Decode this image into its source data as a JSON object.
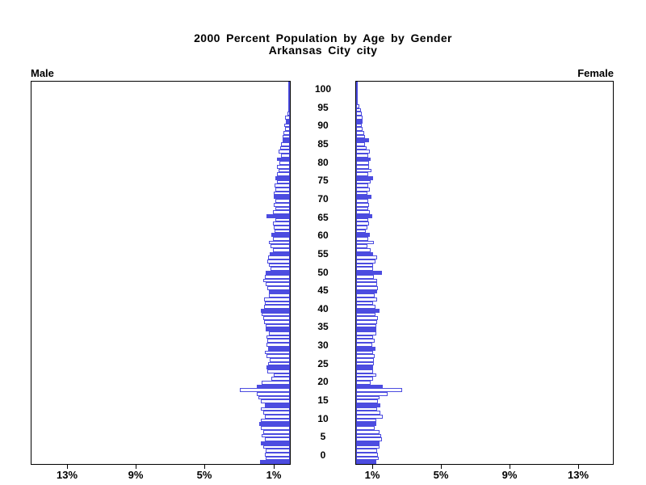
{
  "title": {
    "line1": "2000 Percent Population by Age by Gender",
    "line2": "Arkansas City city"
  },
  "panel_labels": {
    "left": "Male",
    "right": "Female"
  },
  "axis": {
    "x_tick_values": [
      1,
      5,
      9,
      13
    ],
    "x_tick_labels": [
      "1%",
      "5%",
      "9%",
      "13%"
    ],
    "x_max_percent": 15,
    "age_tick_values": [
      0,
      5,
      10,
      15,
      20,
      25,
      30,
      35,
      40,
      45,
      50,
      55,
      60,
      65,
      70,
      75,
      80,
      85,
      90,
      95,
      100
    ],
    "age_tick_labels": [
      "0",
      "5",
      "10",
      "15",
      "20",
      "25",
      "30",
      "35",
      "40",
      "45",
      "50",
      "55",
      "60",
      "65",
      "70",
      "75",
      "80",
      "85",
      "90",
      "95",
      "100"
    ]
  },
  "colors": {
    "bar_blue": "#4C4CE0",
    "axis_black": "#000000",
    "background": "#FFFFFF"
  },
  "chart_data": {
    "type": "bar",
    "subtype": "population-pyramid",
    "title": "2000 Percent Population by Age by Gender",
    "subtitle": "Arkansas City city",
    "x_unit": "percent of population",
    "xlim_each_side": [
      0,
      15
    ],
    "x_ticks_percent": [
      1,
      5,
      9,
      13
    ],
    "age_range": [
      0,
      100
    ],
    "bar_fill_rule": "ages divisible by 5 are solid blue; all other ages are white with blue outline",
    "legend_position": "none",
    "grid": false,
    "series": [
      {
        "name": "Male",
        "side": "left",
        "values_percent_by_age": [
          1.75,
          1.4,
          1.45,
          1.42,
          1.57,
          1.7,
          1.47,
          1.62,
          1.54,
          1.67,
          1.77,
          1.7,
          1.47,
          1.57,
          1.67,
          1.47,
          1.7,
          1.82,
          1.93,
          2.92,
          1.9,
          1.62,
          1.08,
          0.96,
          1.31,
          1.35,
          1.25,
          1.15,
          1.36,
          1.47,
          1.26,
          1.36,
          1.31,
          1.34,
          1.24,
          1.39,
          1.39,
          1.51,
          1.57,
          1.62,
          1.67,
          1.51,
          1.47,
          1.51,
          1.24,
          1.24,
          1.31,
          1.39,
          1.57,
          1.47,
          1.42,
          1.11,
          1.2,
          1.3,
          1.26,
          1.16,
          1.0,
          1.11,
          1.24,
          1.0,
          1.08,
          0.89,
          0.96,
          1.0,
          0.85,
          1.36,
          1.0,
          0.85,
          0.93,
          0.85,
          0.96,
          0.93,
          0.85,
          0.89,
          0.77,
          0.85,
          0.77,
          0.66,
          0.73,
          0.62,
          0.73,
          0.53,
          0.67,
          0.58,
          0.5,
          0.43,
          0.42,
          0.39,
          0.29,
          0.34,
          0.22,
          0.26,
          0.12,
          0.08,
          0.06,
          0.05,
          0.04,
          0.03,
          0.02,
          0.02,
          0.02
        ]
      },
      {
        "name": "Female",
        "side": "right",
        "values_percent_by_age": [
          1.16,
          1.31,
          1.26,
          1.24,
          1.36,
          1.39,
          1.51,
          1.47,
          1.39,
          1.08,
          1.2,
          1.2,
          1.57,
          1.42,
          1.24,
          1.42,
          1.26,
          1.39,
          1.82,
          2.7,
          1.54,
          0.85,
          0.97,
          1.19,
          1.0,
          0.98,
          1.05,
          1.05,
          1.08,
          1.0,
          1.13,
          0.93,
          1.08,
          1.0,
          1.16,
          1.19,
          1.16,
          1.24,
          1.28,
          1.13,
          1.39,
          1.13,
          0.97,
          1.24,
          1.08,
          1.24,
          1.28,
          1.24,
          1.24,
          1.03,
          1.5,
          0.97,
          1.0,
          1.13,
          1.24,
          0.97,
          0.85,
          0.66,
          1.03,
          0.72,
          0.82,
          0.57,
          0.66,
          0.77,
          0.72,
          0.93,
          0.82,
          0.69,
          0.77,
          0.69,
          0.88,
          0.66,
          0.82,
          0.72,
          0.85,
          0.97,
          0.69,
          0.88,
          0.77,
          0.77,
          0.85,
          0.72,
          0.8,
          0.62,
          0.54,
          0.77,
          0.54,
          0.46,
          0.39,
          0.31,
          0.36,
          0.39,
          0.31,
          0.26,
          0.2,
          0.11,
          0.05,
          0.03,
          0.03,
          0.02,
          0.02
        ]
      }
    ]
  }
}
